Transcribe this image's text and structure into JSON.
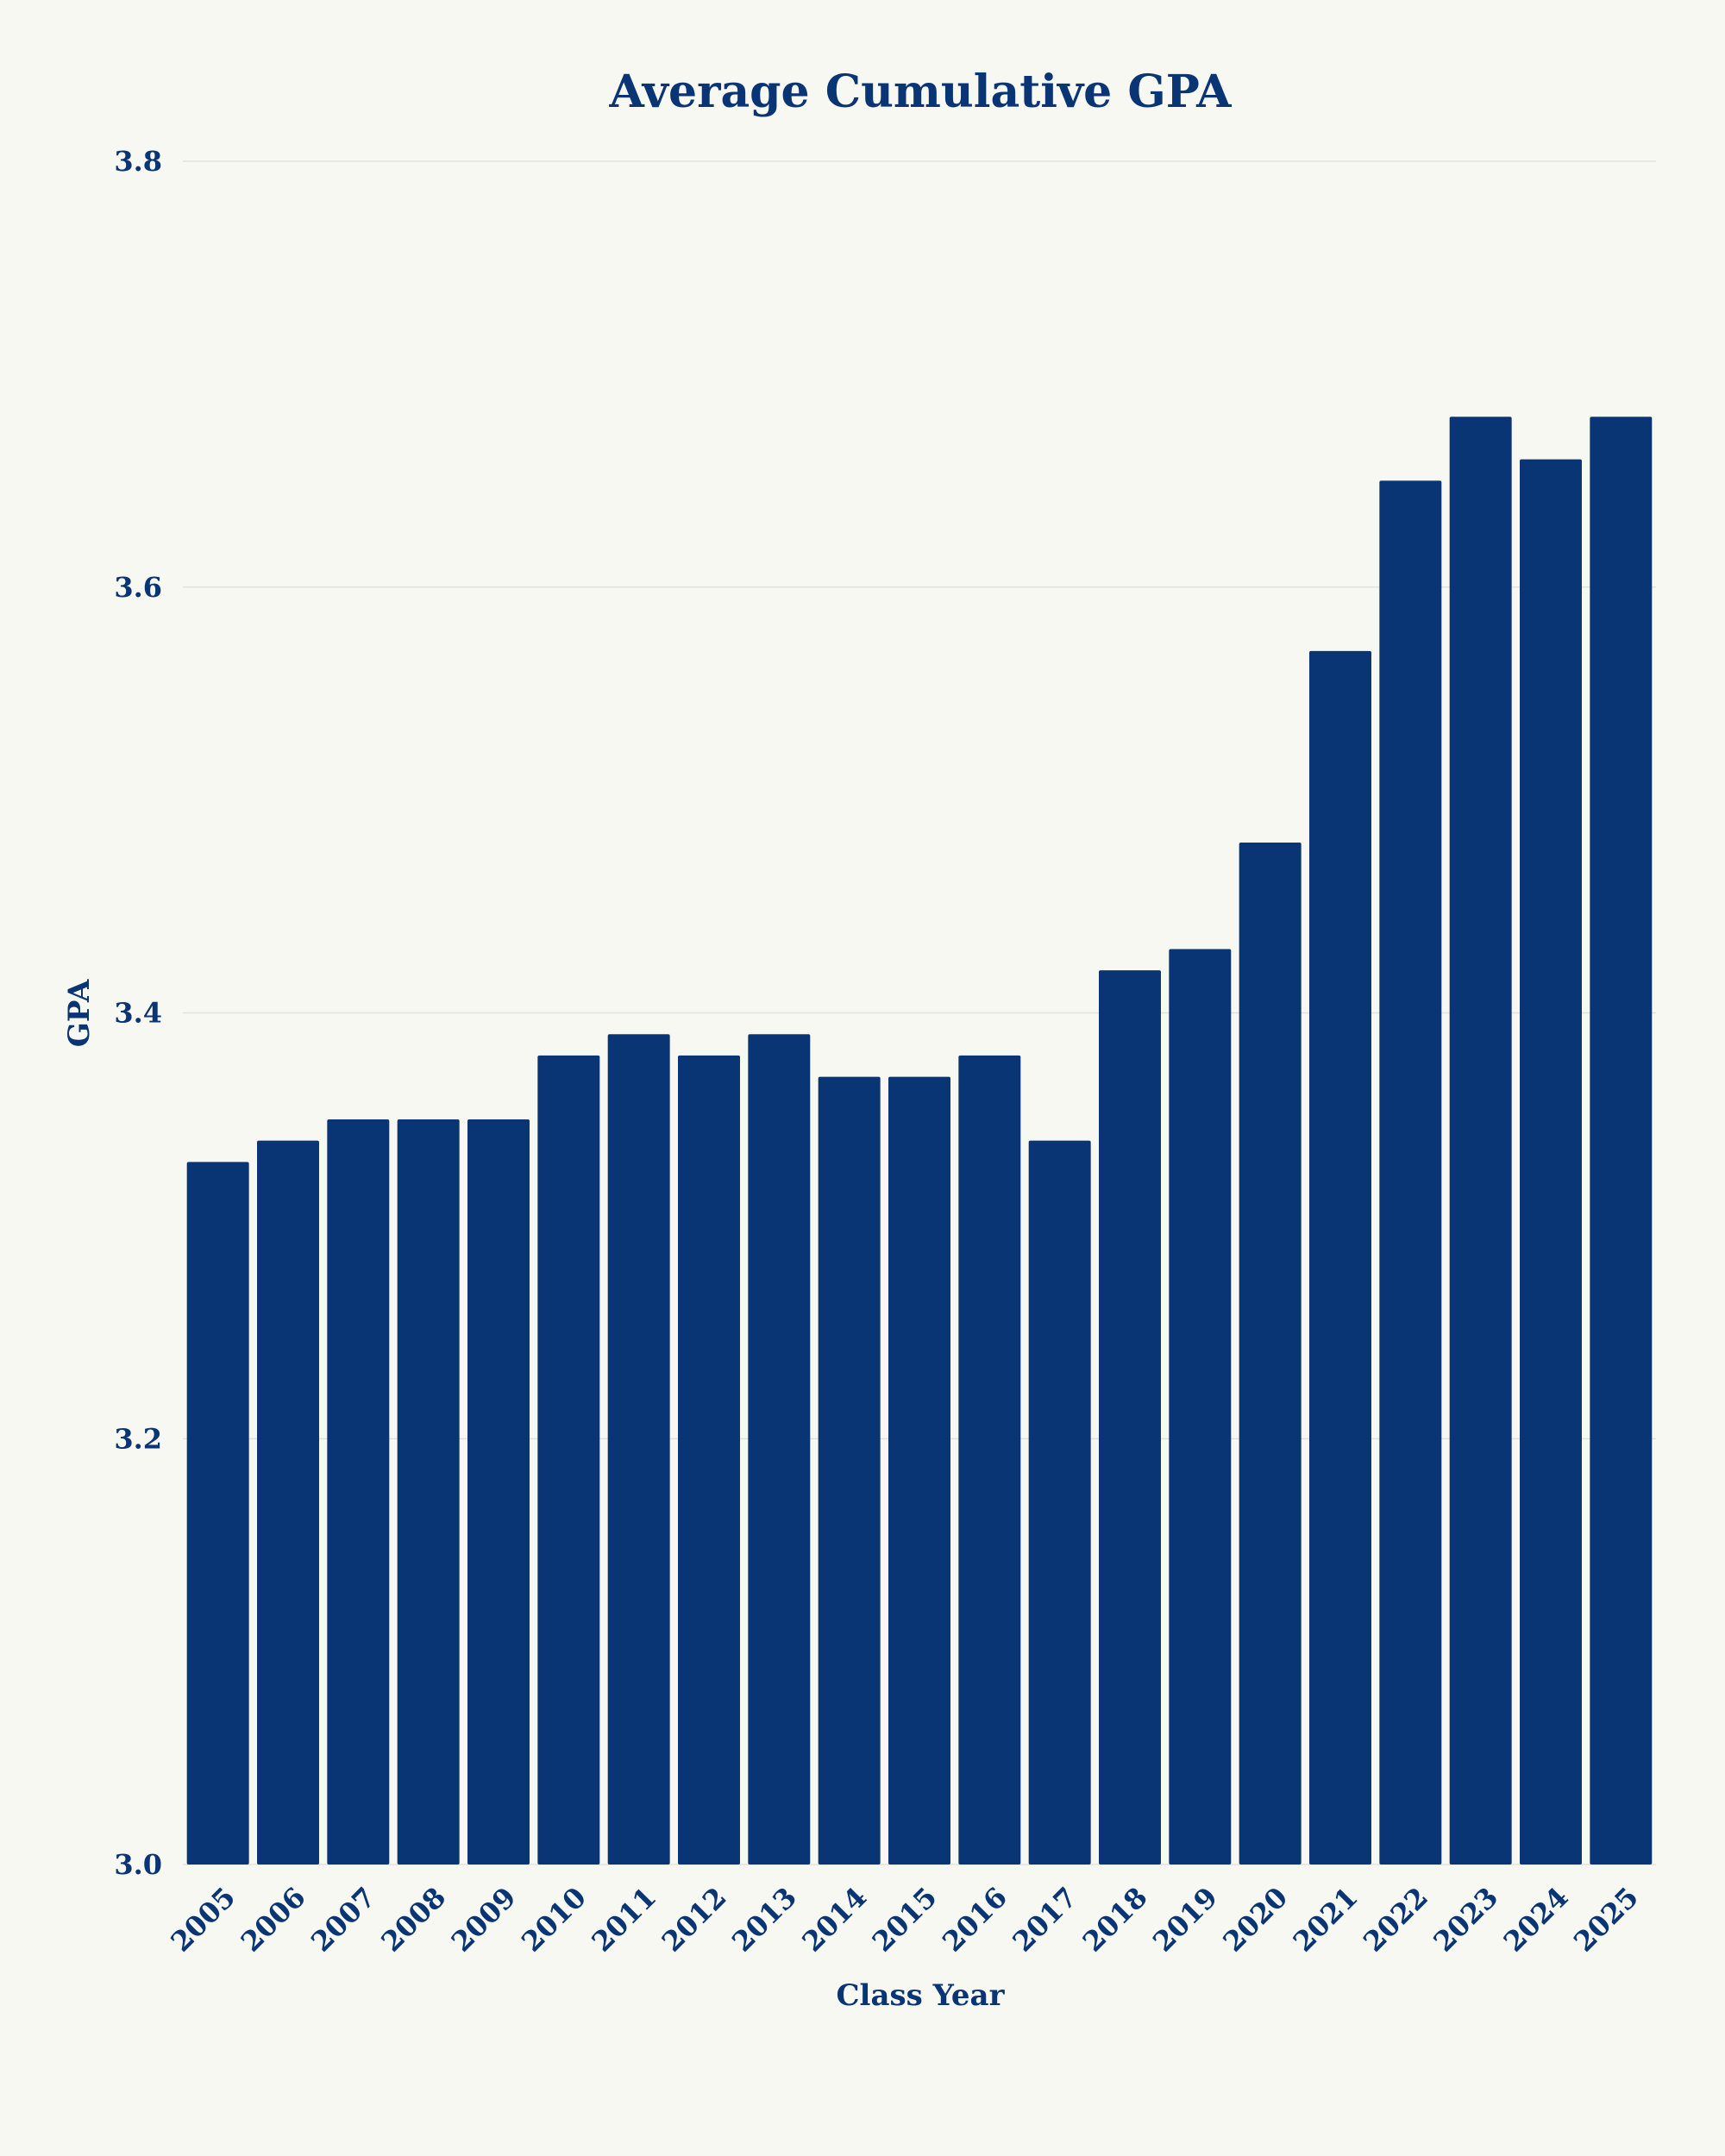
{
  "chart_data": {
    "type": "bar",
    "title": "Average Cumulative GPA",
    "xlabel": "Class Year",
    "ylabel": "GPA",
    "categories": [
      "2005",
      "2006",
      "2007",
      "2008",
      "2009",
      "2010",
      "2011",
      "2012",
      "2013",
      "2014",
      "2015",
      "2016",
      "2017",
      "2018",
      "2019",
      "2020",
      "2021",
      "2022",
      "2023",
      "2024",
      "2025"
    ],
    "values": [
      3.33,
      3.34,
      3.35,
      3.35,
      3.35,
      3.38,
      3.39,
      3.38,
      3.39,
      3.37,
      3.37,
      3.38,
      3.34,
      3.42,
      3.43,
      3.48,
      3.57,
      3.65,
      3.68,
      3.66,
      3.68
    ],
    "ylim": [
      3.0,
      3.8
    ],
    "yticks": [
      "3.0",
      "3.2",
      "3.4",
      "3.6",
      "3.8"
    ],
    "grid": true,
    "colors": {
      "bar": "#0a3575",
      "background": "#f8f8f3",
      "grid": "#e2e2dc"
    }
  }
}
